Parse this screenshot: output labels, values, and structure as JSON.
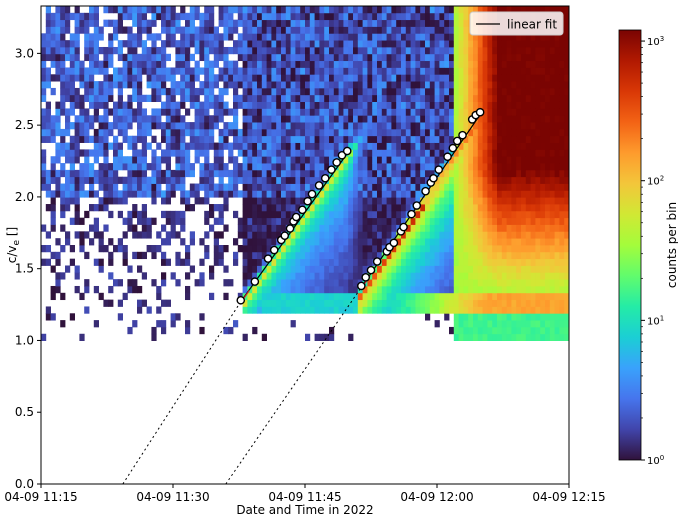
{
  "chart_data": {
    "type": "heatmap",
    "title": "",
    "xlabel": "Date and Time in 2022",
    "ylabel": "c/v_e []",
    "x_ticks": [
      "04-09 11:15",
      "04-09 11:30",
      "04-09 11:45",
      "04-09 12:00",
      "04-09 12:15"
    ],
    "x_range_minutes_after_1115": [
      0,
      60
    ],
    "y_ticks": [
      "0.0",
      "0.5",
      "1.0",
      "1.5",
      "2.0",
      "2.5",
      "3.0"
    ],
    "ylim": [
      0,
      3.33
    ],
    "grid": false,
    "legend": {
      "placement": "top-right",
      "entries": [
        "linear fit"
      ]
    },
    "colorbar": {
      "label": "counts per bin",
      "scale": "log",
      "range": [
        1,
        1200
      ],
      "ticks": [
        "10^0",
        "10^1",
        "10^2",
        "10^3"
      ],
      "colormap": [
        "#30123b",
        "#4145ab",
        "#4675ed",
        "#39a2fc",
        "#1bcfd4",
        "#24eca6",
        "#61fc6c",
        "#a4fc3b",
        "#d1e834",
        "#f3c63a",
        "#fe9b2d",
        "#f36315",
        "#d93806",
        "#b11901",
        "#7a0402"
      ]
    },
    "series": [
      {
        "name": "linear fit",
        "fit_segment": [
          [
            22.7,
            1.27
          ],
          [
            35.0,
            2.32
          ]
        ],
        "extrapolation": [
          [
            9.3,
            0.0
          ],
          [
            22.7,
            1.27
          ]
        ],
        "points": [
          [
            22.7,
            1.28
          ],
          [
            24.3,
            1.41
          ],
          [
            25.8,
            1.57
          ],
          [
            26.5,
            1.63
          ],
          [
            27.3,
            1.7
          ],
          [
            27.7,
            1.73
          ],
          [
            28.3,
            1.78
          ],
          [
            28.7,
            1.83
          ],
          [
            29.0,
            1.86
          ],
          [
            29.7,
            1.91
          ],
          [
            30.3,
            1.97
          ],
          [
            30.8,
            2.02
          ],
          [
            31.6,
            2.08
          ],
          [
            32.3,
            2.13
          ],
          [
            33.0,
            2.19
          ],
          [
            33.6,
            2.24
          ],
          [
            34.2,
            2.29
          ],
          [
            34.8,
            2.32
          ]
        ]
      },
      {
        "name": "linear fit",
        "fit_segment": [
          [
            36.4,
            1.37
          ],
          [
            50.2,
            2.6
          ]
        ],
        "extrapolation": [
          [
            21.0,
            0.0
          ],
          [
            36.4,
            1.37
          ]
        ],
        "points": [
          [
            36.4,
            1.38
          ],
          [
            36.9,
            1.44
          ],
          [
            37.5,
            1.49
          ],
          [
            38.2,
            1.55
          ],
          [
            39.3,
            1.62
          ],
          [
            39.6,
            1.65
          ],
          [
            40.1,
            1.68
          ],
          [
            40.9,
            1.76
          ],
          [
            41.2,
            1.79
          ],
          [
            42.1,
            1.88
          ],
          [
            42.7,
            1.94
          ],
          [
            43.7,
            2.04
          ],
          [
            44.3,
            2.1
          ],
          [
            44.6,
            2.13
          ],
          [
            45.2,
            2.19
          ],
          [
            46.2,
            2.28
          ],
          [
            46.8,
            2.34
          ],
          [
            47.3,
            2.39
          ],
          [
            47.9,
            2.43
          ],
          [
            49.0,
            2.54
          ],
          [
            49.4,
            2.57
          ],
          [
            49.9,
            2.59
          ]
        ]
      }
    ],
    "intensity_ridges": [
      {
        "start": [
          24.0,
          1.33
        ],
        "end": [
          35.8,
          2.35
        ],
        "peak_log": 1.75
      },
      {
        "start": [
          36.8,
          1.33
        ],
        "end": [
          51.0,
          2.62
        ],
        "peak_log": 2.7
      }
    ]
  }
}
